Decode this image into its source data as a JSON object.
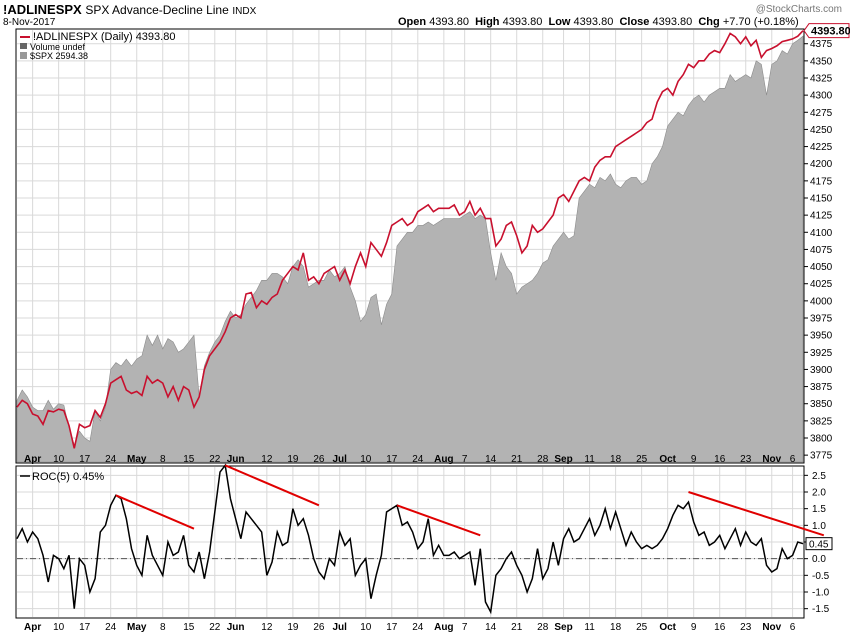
{
  "header": {
    "symbol": "!ADLINESPX",
    "name": "SPX Advance-Decline Line",
    "exchange": "INDX",
    "date": "8-Nov-2017",
    "watermark": "@StockCharts.com",
    "open_label": "Open",
    "open": "4393.80",
    "high_label": "High",
    "high": "4393.80",
    "low_label": "Low",
    "low": "4393.80",
    "close_label": "Close",
    "close": "4393.80",
    "chg_label": "Chg",
    "chg": "+7.70 (+0.18%)"
  },
  "legend": {
    "adline": "!ADLINESPX (Daily) 4393.80",
    "volume": "Volume undef",
    "spx": "$SPX 2594.38"
  },
  "roc_legend": "ROC(5) 0.45%",
  "last_price_tag": "4393.80",
  "roc_last_tag": "0.45",
  "colors": {
    "adline": "#c8102e",
    "spx_fill": "#b3b3b3",
    "spx_stroke": "#8c8c8c",
    "roc": "#000000",
    "trend": "#e00000",
    "grid": "#d9d9d9"
  },
  "x_labels": [
    {
      "label": "Apr",
      "bold": true,
      "i": 3
    },
    {
      "label": "10",
      "bold": false,
      "i": 8
    },
    {
      "label": "17",
      "bold": false,
      "i": 13
    },
    {
      "label": "24",
      "bold": false,
      "i": 18
    },
    {
      "label": "May",
      "bold": true,
      "i": 23
    },
    {
      "label": "8",
      "bold": false,
      "i": 28
    },
    {
      "label": "15",
      "bold": false,
      "i": 33
    },
    {
      "label": "22",
      "bold": false,
      "i": 38
    },
    {
      "label": "Jun",
      "bold": true,
      "i": 42
    },
    {
      "label": "12",
      "bold": false,
      "i": 48
    },
    {
      "label": "19",
      "bold": false,
      "i": 53
    },
    {
      "label": "26",
      "bold": false,
      "i": 58
    },
    {
      "label": "Jul",
      "bold": true,
      "i": 62
    },
    {
      "label": "10",
      "bold": false,
      "i": 67
    },
    {
      "label": "17",
      "bold": false,
      "i": 72
    },
    {
      "label": "24",
      "bold": false,
      "i": 77
    },
    {
      "label": "Aug",
      "bold": true,
      "i": 82
    },
    {
      "label": "7",
      "bold": false,
      "i": 86
    },
    {
      "label": "14",
      "bold": false,
      "i": 91
    },
    {
      "label": "21",
      "bold": false,
      "i": 96
    },
    {
      "label": "28",
      "bold": false,
      "i": 101
    },
    {
      "label": "Sep",
      "bold": true,
      "i": 105
    },
    {
      "label": "11",
      "bold": false,
      "i": 110
    },
    {
      "label": "18",
      "bold": false,
      "i": 115
    },
    {
      "label": "25",
      "bold": false,
      "i": 120
    },
    {
      "label": "Oct",
      "bold": true,
      "i": 125
    },
    {
      "label": "9",
      "bold": false,
      "i": 130
    },
    {
      "label": "16",
      "bold": false,
      "i": 135
    },
    {
      "label": "23",
      "bold": false,
      "i": 140
    },
    {
      "label": "Nov",
      "bold": true,
      "i": 145
    },
    {
      "label": "6",
      "bold": false,
      "i": 149
    }
  ],
  "chart_data": [
    {
      "type": "line",
      "ylim": [
        3765,
        4395
      ],
      "y_ticks": [
        3775,
        3800,
        3825,
        3850,
        3875,
        3900,
        3925,
        3950,
        3975,
        4000,
        4025,
        4050,
        4075,
        4100,
        4125,
        4150,
        4175,
        4200,
        4225,
        4250,
        4275,
        4300,
        4325,
        4350,
        4375
      ],
      "series": [
        {
          "name": "!ADLINESPX (Daily) 4393.80",
          "kind": "line",
          "values": [
            3845,
            3855,
            3850,
            3835,
            3832,
            3820,
            3840,
            3838,
            3842,
            3840,
            3818,
            3785,
            3820,
            3815,
            3818,
            3840,
            3830,
            3850,
            3880,
            3885,
            3890,
            3870,
            3865,
            3868,
            3862,
            3890,
            3880,
            3885,
            3880,
            3860,
            3875,
            3855,
            3875,
            3870,
            3845,
            3860,
            3900,
            3920,
            3930,
            3940,
            3955,
            3975,
            3980,
            3975,
            4010,
            4012,
            3990,
            4000,
            3995,
            4005,
            4010,
            4030,
            4040,
            4050,
            4045,
            4070,
            4030,
            4035,
            4025,
            4040,
            4045,
            4050,
            4030,
            4045,
            4025,
            4050,
            4070,
            4050,
            4085,
            4075,
            4065,
            4085,
            4110,
            4115,
            4120,
            4110,
            4115,
            4130,
            4135,
            4140,
            4130,
            4135,
            4135,
            4135,
            4140,
            4125,
            4130,
            4145,
            4125,
            4135,
            4120,
            4120,
            4080,
            4090,
            4110,
            4115,
            4095,
            4070,
            4080,
            4110,
            4100,
            4105,
            4115,
            4125,
            4150,
            4155,
            4145,
            4160,
            4175,
            4180,
            4175,
            4195,
            4205,
            4210,
            4210,
            4225,
            4230,
            4235,
            4240,
            4245,
            4250,
            4260,
            4265,
            4290,
            4305,
            4310,
            4300,
            4320,
            4330,
            4345,
            4340,
            4350,
            4350,
            4360,
            4365,
            4362,
            4375,
            4390,
            4385,
            4375,
            4385,
            4372,
            4380,
            4355,
            4365,
            4368,
            4372,
            4378,
            4380,
            4382,
            4386,
            4394
          ]
        },
        {
          "name": "$SPX 2594.38",
          "kind": "area",
          "values": [
            3855,
            3870,
            3860,
            3845,
            3840,
            3840,
            3855,
            3842,
            3850,
            3848,
            3815,
            3790,
            3810,
            3800,
            3795,
            3840,
            3825,
            3845,
            3900,
            3910,
            3905,
            3915,
            3905,
            3915,
            3920,
            3950,
            3935,
            3950,
            3930,
            3945,
            3940,
            3925,
            3930,
            3940,
            3950,
            3860,
            3905,
            3925,
            3940,
            3950,
            3970,
            3985,
            3975,
            3980,
            3995,
            4005,
            4015,
            4030,
            4030,
            4040,
            4040,
            4035,
            4025,
            4050,
            4060,
            4050,
            4020,
            4025,
            4030,
            4030,
            4045,
            4035,
            4040,
            4050,
            4020,
            4000,
            3970,
            3980,
            4005,
            4010,
            3965,
            3995,
            4010,
            4080,
            4090,
            4100,
            4100,
            4110,
            4110,
            4115,
            4110,
            4115,
            4120,
            4120,
            4120,
            4120,
            4125,
            4130,
            4120,
            4125,
            4120,
            4070,
            4030,
            4070,
            4050,
            4040,
            4010,
            4020,
            4025,
            4030,
            4040,
            4055,
            4060,
            4080,
            4090,
            4100,
            4090,
            4095,
            4150,
            4160,
            4170,
            4165,
            4180,
            4175,
            4185,
            4170,
            4165,
            4175,
            4180,
            4180,
            4170,
            4175,
            4200,
            4210,
            4225,
            4255,
            4265,
            4275,
            4270,
            4285,
            4295,
            4300,
            4290,
            4300,
            4305,
            4310,
            4310,
            4330,
            4320,
            4325,
            4330,
            4325,
            4350,
            4345,
            4300,
            4345,
            4350,
            4365,
            4360,
            4375,
            4380,
            4386
          ]
        }
      ],
      "xlabel": "",
      "ylabel": ""
    },
    {
      "type": "line",
      "ylim": [
        -1.75,
        2.75
      ],
      "y_ticks": [
        -1.5,
        -1.0,
        -0.5,
        0.0,
        0.5,
        1.0,
        1.5,
        2.0,
        2.5
      ],
      "y_tick_labels": [
        "-1.5",
        "-1.0",
        "-0.5",
        "0.0",
        "0.5",
        "1.0",
        "1.5",
        "2.0",
        "2.5"
      ],
      "zero_line": 0,
      "series": [
        {
          "name": "ROC(5) 0.45%",
          "kind": "line",
          "values": [
            0.6,
            0.9,
            0.5,
            0.8,
            0.6,
            0.1,
            -0.7,
            0.1,
            0.0,
            -0.3,
            0.1,
            -1.5,
            0.0,
            -0.2,
            -1.0,
            -0.6,
            0.8,
            1.0,
            1.6,
            1.9,
            1.8,
            1.2,
            0.3,
            -0.2,
            -0.5,
            0.7,
            0.1,
            -0.2,
            -0.5,
            0.5,
            0.1,
            0.2,
            0.7,
            -0.2,
            -0.4,
            0.2,
            -0.6,
            0.2,
            1.4,
            2.6,
            2.8,
            1.8,
            1.2,
            0.6,
            1.4,
            1.2,
            1.0,
            0.8,
            -0.5,
            -0.1,
            0.8,
            0.4,
            0.5,
            1.5,
            1.0,
            1.2,
            0.7,
            0.0,
            -0.4,
            -0.6,
            0.0,
            -0.2,
            0.8,
            0.4,
            0.6,
            -0.5,
            -0.2,
            0.0,
            -1.2,
            -0.5,
            0.1,
            1.4,
            1.5,
            1.6,
            1.0,
            1.1,
            0.8,
            0.3,
            0.5,
            1.2,
            0.1,
            0.4,
            0.1,
            0.1,
            0.2,
            0.0,
            0.1,
            0.2,
            -0.8,
            0.3,
            -1.3,
            -1.6,
            -0.5,
            -0.3,
            0.0,
            0.2,
            -0.2,
            -0.5,
            -1.0,
            -0.6,
            0.3,
            -0.6,
            -0.3,
            0.5,
            -0.2,
            0.6,
            0.9,
            0.5,
            0.6,
            0.9,
            1.2,
            0.7,
            1.0,
            1.5,
            0.9,
            1.4,
            0.9,
            0.4,
            0.8,
            0.5,
            0.3,
            0.4,
            0.3,
            0.4,
            0.6,
            0.9,
            1.3,
            1.6,
            1.5,
            1.7,
            1.1,
            0.7,
            0.8,
            0.4,
            0.5,
            0.7,
            0.3,
            0.6,
            0.9,
            0.4,
            0.8,
            0.5,
            0.4,
            0.6,
            -0.2,
            -0.4,
            -0.3,
            0.3,
            0.0,
            0.1,
            0.5,
            0.45
          ]
        }
      ],
      "trendlines": [
        {
          "from": {
            "i": 19,
            "y": 1.9
          },
          "to": {
            "i": 34,
            "y": 0.9
          }
        },
        {
          "from": {
            "i": 40,
            "y": 2.8
          },
          "to": {
            "i": 58,
            "y": 1.6
          }
        },
        {
          "from": {
            "i": 73,
            "y": 1.6
          },
          "to": {
            "i": 89,
            "y": 0.7
          }
        },
        {
          "from": {
            "i": 129,
            "y": 2.0
          },
          "to": {
            "i": 155,
            "y": 0.7
          }
        }
      ],
      "xlabel": "",
      "ylabel": ""
    }
  ]
}
